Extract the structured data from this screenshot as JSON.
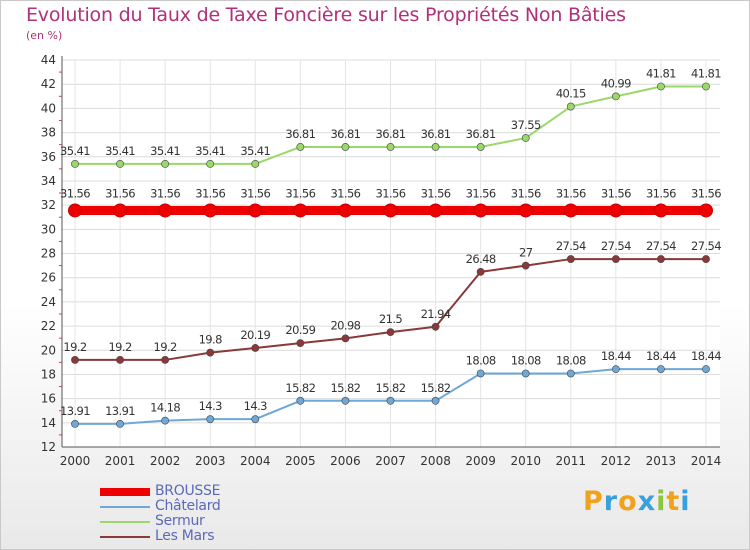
{
  "title": "Evolution du Taux de Taxe Foncière sur les Propriétés Non Bâties",
  "subtitle": "(en %)",
  "logo": {
    "letters": [
      "P",
      "r",
      "o",
      "x",
      "i",
      "t",
      "i"
    ],
    "colors": [
      "#f0a21c",
      "#3aa0dc",
      "#f0a21c",
      "#3aa0dc",
      "#8cc63f",
      "#f0a21c",
      "#3aa0dc"
    ]
  },
  "chart_data": {
    "type": "line",
    "title": "Evolution du Taux de Taxe Foncière sur les Propriétés Non Bâties",
    "ylabel": "(en %)",
    "x": [
      "2000",
      "2001",
      "2002",
      "2003",
      "2004",
      "2005",
      "2006",
      "2007",
      "2008",
      "2009",
      "2010",
      "2011",
      "2012",
      "2013",
      "2014"
    ],
    "ylim": [
      12,
      44
    ],
    "yticks": [
      "12",
      "14",
      "16",
      "18",
      "20",
      "22",
      "24",
      "26",
      "28",
      "30",
      "32",
      "34",
      "36",
      "38",
      "40",
      "42",
      "44"
    ],
    "grid": true,
    "legend_position": "bottom-left",
    "series": [
      {
        "name": "BROUSSE",
        "color": "#ee0000",
        "labels": [
          "31.56",
          "31.56",
          "31.56",
          "31.56",
          "31.56",
          "31.56",
          "31.56",
          "31.56",
          "31.56",
          "31.56",
          "31.56",
          "31.56",
          "31.56",
          "31.56",
          "31.56"
        ],
        "values": [
          31.56,
          31.56,
          31.56,
          31.56,
          31.56,
          31.56,
          31.56,
          31.56,
          31.56,
          31.56,
          31.56,
          31.56,
          31.56,
          31.56,
          31.56
        ]
      },
      {
        "name": "Châtelard",
        "color": "#6fa7d6",
        "labels": [
          "13.91",
          "13.91",
          "14.18",
          "14.3",
          "14.3",
          "15.82",
          "15.82",
          "15.82",
          "15.82",
          "18.08",
          "18.08",
          "18.08",
          "18.44",
          "18.44",
          "18.44"
        ],
        "values": [
          13.91,
          13.91,
          14.18,
          14.3,
          14.3,
          15.82,
          15.82,
          15.82,
          15.82,
          18.08,
          18.08,
          18.08,
          18.44,
          18.44,
          18.44
        ]
      },
      {
        "name": "Sermur",
        "color": "#9bd86a",
        "labels": [
          "35.41",
          "35.41",
          "35.41",
          "35.41",
          "35.41",
          "36.81",
          "36.81",
          "36.81",
          "36.81",
          "36.81",
          "37.55",
          "40.15",
          "40.99",
          "41.81",
          "41.81"
        ],
        "values": [
          35.41,
          35.41,
          35.41,
          35.41,
          35.41,
          36.81,
          36.81,
          36.81,
          36.81,
          36.81,
          37.55,
          40.15,
          40.99,
          41.81,
          41.81
        ]
      },
      {
        "name": "Les Mars",
        "color": "#8a3838",
        "labels": [
          "19.2",
          "19.2",
          "19.2",
          "19.8",
          "20.19",
          "20.59",
          "20.98",
          "21.5",
          "21.94",
          "26.48",
          "27",
          "27.54",
          "27.54",
          "27.54",
          "27.54"
        ],
        "values": [
          19.2,
          19.2,
          19.2,
          19.8,
          20.19,
          20.59,
          20.98,
          21.5,
          21.94,
          26.48,
          27,
          27.54,
          27.54,
          27.54,
          27.54
        ]
      }
    ]
  }
}
